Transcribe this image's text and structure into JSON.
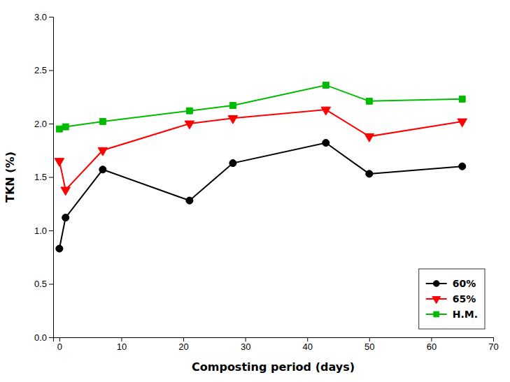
{
  "chart_data": {
    "type": "line",
    "xlabel": "Composting period (days)",
    "ylabel": "TKN (%)",
    "x": [
      0,
      1,
      7,
      21,
      28,
      43,
      50,
      65
    ],
    "series": [
      {
        "name": "60%",
        "color": "#000000",
        "marker": "circle",
        "values": [
          0.83,
          1.12,
          1.57,
          1.28,
          1.63,
          1.82,
          1.53,
          1.6
        ]
      },
      {
        "name": "65%",
        "color": "#ff0000",
        "marker": "triangle-down",
        "values": [
          1.65,
          1.38,
          1.75,
          2.0,
          2.05,
          2.13,
          1.88,
          2.02
        ]
      },
      {
        "name": "H.M.",
        "color": "#00bb00",
        "marker": "square",
        "values": [
          1.95,
          1.97,
          2.02,
          2.12,
          2.17,
          2.36,
          2.21,
          2.23
        ]
      }
    ],
    "xlim": [
      -1,
      70
    ],
    "ylim": [
      0.0,
      3.0
    ],
    "xticks": [
      0,
      10,
      20,
      30,
      40,
      50,
      60,
      70
    ],
    "yticks": [
      {
        "value": 0.0,
        "label": "0.0"
      },
      0.5,
      {
        "value": 1.0,
        "label": "1.0"
      },
      1.5,
      {
        "value": 2.0,
        "label": "2.0"
      },
      2.5,
      {
        "value": 3.0,
        "label": "3.0"
      }
    ],
    "legend": "lower right",
    "grid": false
  }
}
